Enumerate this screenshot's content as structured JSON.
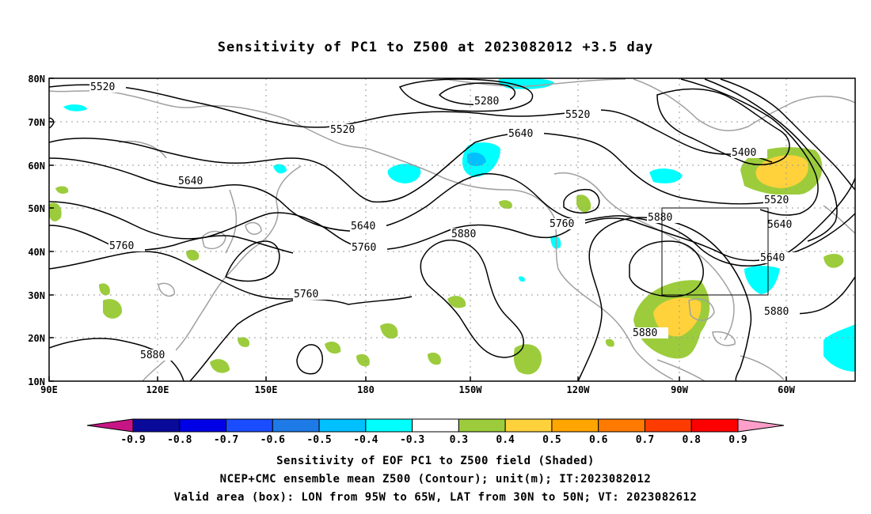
{
  "title": "Sensitivity of PC1 to Z500 at 2023082012 +3.5 day",
  "lat_labels": [
    "80N",
    "70N",
    "60N",
    "50N",
    "40N",
    "30N",
    "20N",
    "10N"
  ],
  "lon_labels": [
    "90E",
    "120E",
    "150E",
    "180",
    "150W",
    "120W",
    "90W",
    "60W"
  ],
  "contour_labels": [
    "5520",
    "5280",
    "5520",
    "5640",
    "5520",
    "5400",
    "5640",
    "5520",
    "5640",
    "5640",
    "5760",
    "5880",
    "5760",
    "5880",
    "5640",
    "5760",
    "5760",
    "5880",
    "5880",
    "5880"
  ],
  "colorbar": {
    "colors": [
      "#c71585",
      "#0a0a9a",
      "#0000e6",
      "#1a4dff",
      "#1e7ae6",
      "#00c0ff",
      "#00ffff",
      "#ffffff",
      "#9ccc3c",
      "#ffd23c",
      "#ffa500",
      "#ff7a00",
      "#ff3c00",
      "#ff0000",
      "#ff9ec8"
    ],
    "labels": [
      "-0.9",
      "-0.8",
      "-0.7",
      "-0.6",
      "-0.5",
      "-0.4",
      "-0.3",
      "0.3",
      "0.4",
      "0.5",
      "0.6",
      "0.7",
      "0.8",
      "0.9"
    ]
  },
  "captions": [
    "Sensitivity of EOF PC1 to Z500 field (Shaded)",
    "NCEP+CMC ensemble mean Z500 (Contour); unit(m); IT:2023082012",
    "Valid area (box): LON from 95W to 65W, LAT from 30N to 50N; VT: 2023082612"
  ]
}
